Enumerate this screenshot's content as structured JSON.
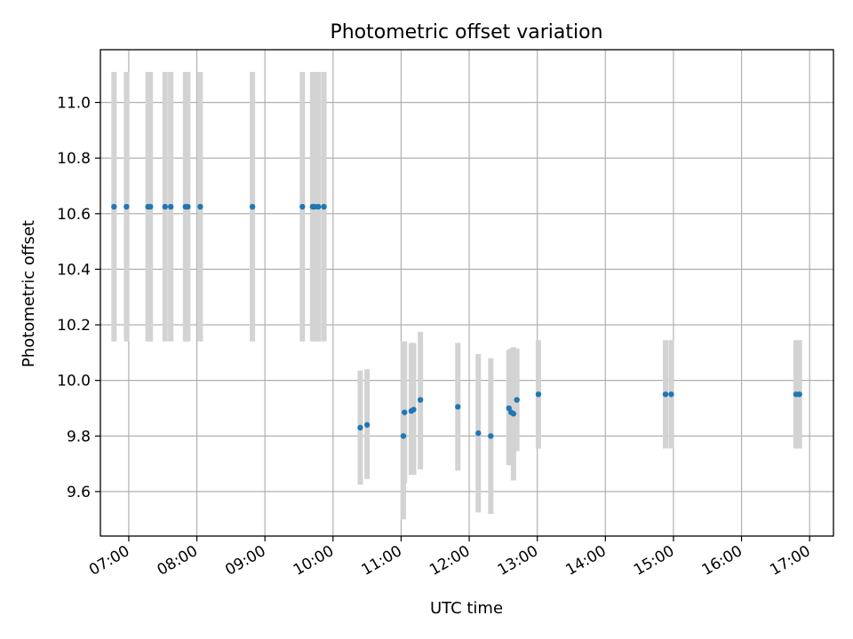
{
  "chart_data": {
    "type": "scatter",
    "title": "Photometric offset variation",
    "xlabel": "UTC time",
    "ylabel": "Photometric offset",
    "xlim": [
      "06:35",
      "17:21"
    ],
    "ylim": [
      9.44,
      11.19
    ],
    "grid": true,
    "xticks": [
      "07:00",
      "08:00",
      "09:00",
      "10:00",
      "11:00",
      "12:00",
      "13:00",
      "14:00",
      "15:00",
      "16:00",
      "17:00"
    ],
    "yticks": [
      "9.6",
      "9.8",
      "10.0",
      "10.2",
      "10.4",
      "10.6",
      "10.8",
      "11.0"
    ],
    "series": [
      {
        "color": "#1f77b4",
        "errorbar_color": "#d3d3d3",
        "points": [
          {
            "x": "06:47",
            "y": 10.625,
            "ylow": 10.14,
            "yhigh": 11.11
          },
          {
            "x": "06:58",
            "y": 10.625,
            "ylow": 10.14,
            "yhigh": 11.11
          },
          {
            "x": "07:17",
            "y": 10.625,
            "ylow": 10.14,
            "yhigh": 11.11
          },
          {
            "x": "07:19",
            "y": 10.625,
            "ylow": 10.14,
            "yhigh": 11.11
          },
          {
            "x": "07:32",
            "y": 10.625,
            "ylow": 10.14,
            "yhigh": 11.11
          },
          {
            "x": "07:37",
            "y": 10.625,
            "ylow": 10.14,
            "yhigh": 11.11
          },
          {
            "x": "07:50",
            "y": 10.625,
            "ylow": 10.14,
            "yhigh": 11.11
          },
          {
            "x": "07:52",
            "y": 10.625,
            "ylow": 10.14,
            "yhigh": 11.11
          },
          {
            "x": "08:03",
            "y": 10.625,
            "ylow": 10.14,
            "yhigh": 11.11
          },
          {
            "x": "08:49",
            "y": 10.625,
            "ylow": 10.14,
            "yhigh": 11.11
          },
          {
            "x": "09:33",
            "y": 10.625,
            "ylow": 10.14,
            "yhigh": 11.11
          },
          {
            "x": "09:42",
            "y": 10.625,
            "ylow": 10.14,
            "yhigh": 11.11
          },
          {
            "x": "09:44",
            "y": 10.625,
            "ylow": 10.14,
            "yhigh": 11.11
          },
          {
            "x": "09:47",
            "y": 10.625,
            "ylow": 10.14,
            "yhigh": 11.11
          },
          {
            "x": "09:52",
            "y": 10.625,
            "ylow": 10.14,
            "yhigh": 11.11
          },
          {
            "x": "10:24",
            "y": 9.83,
            "ylow": 9.625,
            "yhigh": 10.035
          },
          {
            "x": "10:30",
            "y": 9.84,
            "ylow": 9.645,
            "yhigh": 10.04
          },
          {
            "x": "11:02",
            "y": 9.8,
            "ylow": 9.5,
            "yhigh": 10.14
          },
          {
            "x": "11:03",
            "y": 9.885,
            "ylow": 9.63,
            "yhigh": 10.14
          },
          {
            "x": "11:09",
            "y": 9.89,
            "ylow": 9.66,
            "yhigh": 10.135
          },
          {
            "x": "11:11",
            "y": 9.895,
            "ylow": 9.66,
            "yhigh": 10.135
          },
          {
            "x": "11:17",
            "y": 9.93,
            "ylow": 9.68,
            "yhigh": 10.175
          },
          {
            "x": "11:50",
            "y": 9.905,
            "ylow": 9.675,
            "yhigh": 10.135
          },
          {
            "x": "12:08",
            "y": 9.81,
            "ylow": 9.525,
            "yhigh": 10.095
          },
          {
            "x": "12:19",
            "y": 9.8,
            "ylow": 9.52,
            "yhigh": 10.08
          },
          {
            "x": "12:35",
            "y": 9.9,
            "ylow": 9.695,
            "yhigh": 10.11
          },
          {
            "x": "12:37",
            "y": 9.885,
            "ylow": 9.695,
            "yhigh": 10.115
          },
          {
            "x": "12:39",
            "y": 9.88,
            "ylow": 9.64,
            "yhigh": 10.12
          },
          {
            "x": "12:42",
            "y": 9.93,
            "ylow": 9.745,
            "yhigh": 10.115
          },
          {
            "x": "13:01",
            "y": 9.95,
            "ylow": 9.755,
            "yhigh": 10.145
          },
          {
            "x": "14:53",
            "y": 9.95,
            "ylow": 9.755,
            "yhigh": 10.145
          },
          {
            "x": "14:58",
            "y": 9.95,
            "ylow": 9.755,
            "yhigh": 10.145
          },
          {
            "x": "16:48",
            "y": 9.95,
            "ylow": 9.755,
            "yhigh": 10.145
          },
          {
            "x": "16:51",
            "y": 9.95,
            "ylow": 9.755,
            "yhigh": 10.145
          }
        ]
      }
    ]
  }
}
